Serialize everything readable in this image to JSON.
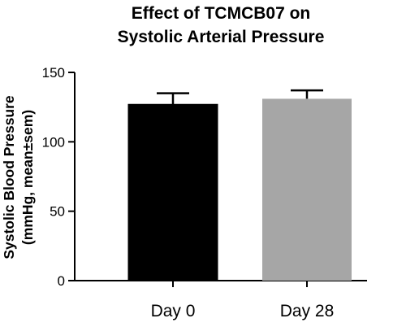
{
  "chart_data": {
    "type": "bar",
    "title": [
      "Effect of TCMCB07 on",
      "Systolic Arterial Pressure"
    ],
    "ylabel": [
      "Systolic Blood Pressure",
      "(mmHg, mean±sem)"
    ],
    "xlabel": "",
    "categories": [
      "Day 0",
      "Day 28"
    ],
    "values": [
      127,
      131
    ],
    "errors": [
      8,
      6
    ],
    "bar_colors": [
      "#000000",
      "#a6a6a6"
    ],
    "ylim": [
      0,
      150
    ],
    "yticks": [
      0,
      50,
      100,
      150
    ],
    "grid": false,
    "legend": "none"
  }
}
